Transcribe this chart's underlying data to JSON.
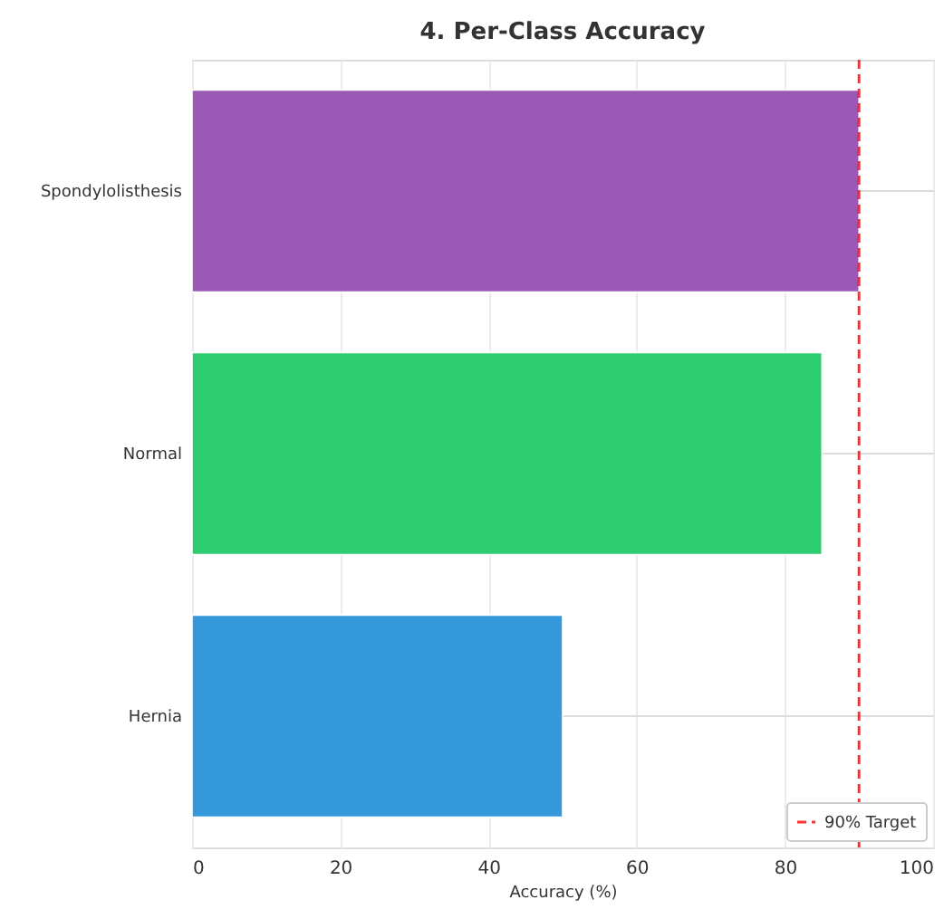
{
  "chart_data": {
    "type": "bar",
    "title": "4. Per-Class Accuracy",
    "xlabel": "Accuracy (%)",
    "orientation": "horizontal",
    "categories": [
      "Spondylolisthesis",
      "Normal",
      "Hernia"
    ],
    "values": [
      90,
      85,
      50
    ],
    "colors": [
      "#9b59b6",
      "#2ecc71",
      "#3498db"
    ],
    "xlim": [
      0,
      100
    ],
    "xticks": [
      0,
      20,
      40,
      60,
      80,
      100
    ],
    "grid": true,
    "legend": "bottom right",
    "ref_lines": [
      {
        "axis": "x",
        "value": 90,
        "label": "90% Target",
        "color": "#ff0000",
        "line_style": "dashed"
      }
    ]
  }
}
